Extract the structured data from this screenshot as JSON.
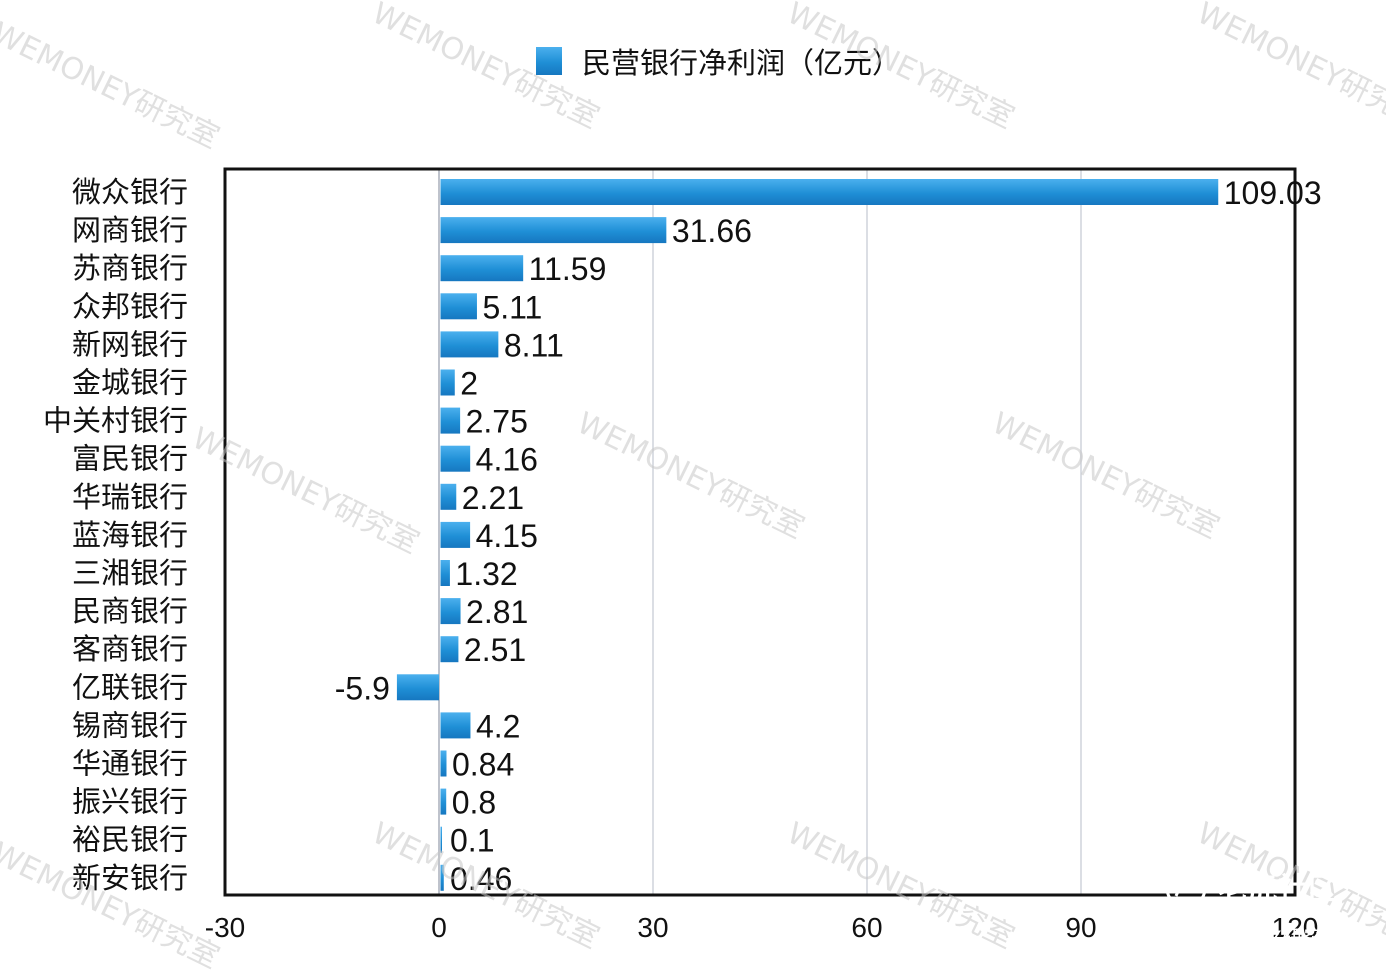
{
  "chart_data": {
    "type": "bar",
    "orientation": "horizontal",
    "legend": {
      "label": "民营银行净利润（亿元）",
      "placement": "top-center"
    },
    "categories": [
      "微众银行",
      "网商银行",
      "苏商银行",
      "众邦银行",
      "新网银行",
      "金城银行",
      "中关村银行",
      "富民银行",
      "华瑞银行",
      "蓝海银行",
      "三湘银行",
      "民商银行",
      "客商银行",
      "亿联银行",
      "锡商银行",
      "华通银行",
      "振兴银行",
      "裕民银行",
      "新安银行"
    ],
    "values": [
      109.03,
      31.66,
      11.59,
      5.11,
      8.11,
      2,
      2.75,
      4.16,
      2.21,
      4.15,
      1.32,
      2.81,
      2.51,
      -5.9,
      4.2,
      0.84,
      0.8,
      0.1,
      0.46
    ],
    "value_labels": [
      "109.03",
      "31.66",
      "11.59",
      "5.11",
      "8.11",
      "2",
      "2.75",
      "4.16",
      "2.21",
      "4.15",
      "1.32",
      "2.81",
      "2.51",
      "-5.9",
      "4.2",
      "0.84",
      "0.8",
      "0.1",
      "0.46"
    ],
    "xlim": [
      -30,
      120
    ],
    "xticks": [
      -30,
      0,
      30,
      60,
      90,
      120
    ],
    "xtick_labels": [
      "-30",
      "0",
      "30",
      "60",
      "90",
      "120"
    ],
    "grid": "vertical",
    "bar_color": "#1f8fd6",
    "title": "",
    "xlabel": "",
    "ylabel": ""
  },
  "watermark": {
    "text": "WEMONEY研究室",
    "color": "#c8c8c8"
  },
  "corner": {
    "logo_text": "老虎社区",
    "tag_text": "@WEMONEY研究室"
  }
}
